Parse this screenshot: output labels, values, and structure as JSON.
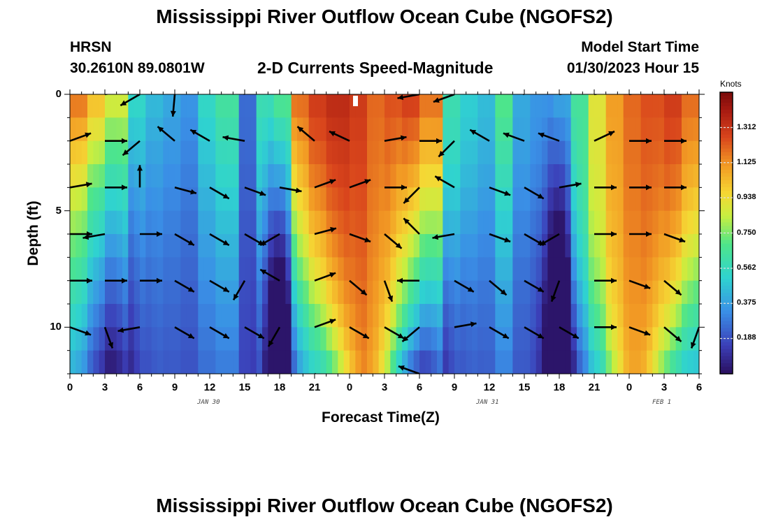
{
  "chart_data": {
    "type": "heatmap",
    "title": "Mississippi River Outflow Ocean Cube (NGOFS2)",
    "station": {
      "name": "HRSN",
      "coords": "30.2610N  89.0801W"
    },
    "subtitle": "2-D Currents Speed-Magnitude",
    "model_start": {
      "label": "Model Start Time",
      "value": "01/30/2023 Hour 15"
    },
    "xlabel": "Forecast Time(Z)",
    "ylabel": "Depth (ft)",
    "x_ticks": [
      "0",
      "3",
      "6",
      "9",
      "12",
      "15",
      "18",
      "21",
      "0",
      "3",
      "6",
      "9",
      "12",
      "15",
      "18",
      "21",
      "0",
      "3",
      "6"
    ],
    "y_ticks": [
      "0",
      "5",
      "10"
    ],
    "ylim": [
      0,
      12
    ],
    "date_labels": [
      "JAN 30",
      "JAN 31",
      "FEB 1"
    ],
    "colorbar": {
      "unit": "Knots",
      "ticks": [
        "1.312",
        "1.125",
        "0.938",
        "0.750",
        "0.562",
        "0.375",
        "0.188"
      ],
      "min": 0.0,
      "max": 1.5
    },
    "depth_levels": [
      0.5,
      1.5,
      2.5,
      3.5,
      4.5,
      5.5,
      6.5,
      7.5,
      8.5,
      9.5,
      10.5,
      11.5
    ],
    "surface_speed_by_hour": [
      1.2,
      1.05,
      0.9,
      0.55,
      0.45,
      0.4,
      0.35,
      0.55,
      0.65,
      0.25,
      0.6,
      0.7,
      1.2,
      1.3,
      1.35,
      1.3,
      1.2,
      1.25,
      1.3,
      1.2,
      0.6,
      0.5,
      0.45,
      0.7,
      0.4,
      0.35,
      0.4,
      0.65,
      0.9,
      1.1,
      1.2,
      1.25,
      1.3,
      1.2,
      0.8
    ],
    "vector_rows_depth_ft": [
      0,
      2,
      4,
      6,
      8,
      10,
      12
    ],
    "vector_cols_hour": [
      0,
      3,
      6,
      9,
      12,
      15,
      18,
      21,
      24,
      27,
      30,
      33,
      36,
      39,
      42,
      45,
      48,
      51,
      54
    ],
    "vectors_deg": [
      [
        null,
        10,
        210,
        265,
        null,
        150,
        null,
        null,
        155,
        null,
        190,
        200,
        140,
        160,
        10,
        10,
        10,
        15,
        null
      ],
      [
        20,
        0,
        220,
        140,
        150,
        170,
        null,
        140,
        155,
        10,
        0,
        225,
        150,
        160,
        160,
        25,
        0,
        0,
        0
      ],
      [
        10,
        0,
        90,
        345,
        330,
        340,
        350,
        20,
        20,
        0,
        225,
        150,
        340,
        330,
        10,
        0,
        0,
        0,
        0
      ],
      [
        0,
        190,
        0,
        330,
        330,
        330,
        210,
        15,
        340,
        320,
        135,
        190,
        340,
        330,
        210,
        0,
        0,
        340,
        0
      ],
      [
        0,
        0,
        0,
        330,
        330,
        240,
        150,
        20,
        320,
        290,
        180,
        330,
        320,
        330,
        250,
        0,
        340,
        320,
        0
      ],
      [
        340,
        290,
        190,
        330,
        330,
        330,
        240,
        20,
        330,
        330,
        220,
        10,
        330,
        330,
        330,
        0,
        340,
        320,
        250
      ],
      [
        330,
        240,
        null,
        null,
        null,
        null,
        null,
        340,
        320,
        330,
        160,
        null,
        null,
        null,
        null,
        340,
        320,
        320,
        220
      ]
    ]
  }
}
